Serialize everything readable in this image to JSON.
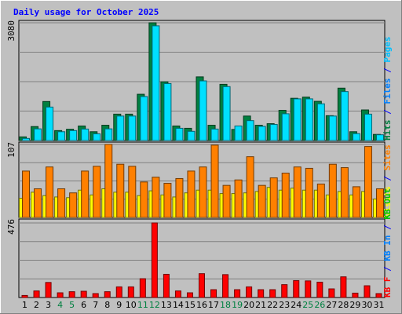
{
  "chart_data": {
    "type": "bar",
    "title": "Daily usage for October 2025",
    "categories": [
      "1",
      "2",
      "3",
      "4",
      "5",
      "6",
      "7",
      "8",
      "9",
      "10",
      "11",
      "12",
      "13",
      "14",
      "15",
      "16",
      "17",
      "18",
      "19",
      "20",
      "21",
      "22",
      "23",
      "24",
      "25",
      "26",
      "27",
      "28",
      "29",
      "30",
      "31"
    ],
    "weekend_days": [
      "4",
      "5",
      "11",
      "12",
      "18",
      "19",
      "25",
      "26"
    ],
    "grid": true,
    "panels": [
      {
        "id": "hits-files",
        "ymax_label": "3080",
        "ylim": [
          0,
          3080
        ],
        "right_labels": [
          {
            "text": "Hits",
            "color": "#008040"
          },
          {
            "text": " / ",
            "color": "#0000ff"
          },
          {
            "text": "Files",
            "color": "#0080ff"
          },
          {
            "text": " / ",
            "color": "#0000ff"
          },
          {
            "text": "Pages",
            "color": "#00c0ff"
          }
        ],
        "series": [
          {
            "name": "Hits",
            "color": "#008040",
            "values": [
              95,
              365,
              1020,
              260,
              295,
              380,
              230,
              400,
              690,
              690,
              1210,
              3080,
              1535,
              380,
              320,
              1665,
              400,
              1470,
              290,
              640,
              400,
              440,
              790,
              1105,
              1135,
              1025,
              650,
              1370,
              230,
              800,
              160
            ]
          },
          {
            "name": "Files",
            "color": "#00e0ff",
            "values": [
              55,
              305,
              875,
              230,
              260,
              300,
              175,
              305,
              640,
              640,
              1150,
              3000,
              1490,
              320,
              240,
              1560,
              300,
              1410,
              380,
              520,
              370,
              420,
              700,
              1090,
              1090,
              960,
              640,
              1280,
              180,
              690,
              150
            ]
          }
        ]
      },
      {
        "id": "sites-visits",
        "ymax_label": "107",
        "ylim": [
          0,
          107
        ],
        "right_labels": [
          {
            "text": "Visits",
            "color": "#ffff00"
          },
          {
            "text": " / ",
            "color": "#0000ff"
          },
          {
            "text": "Sites",
            "color": "#ff8000"
          }
        ],
        "series": [
          {
            "name": "Visits",
            "color": "#ffff00",
            "values": [
              28,
              37,
              32,
              30,
              29,
              40,
              33,
              42,
              37,
              37,
              32,
              39,
              33,
              30,
              36,
              40,
              40,
              35,
              35,
              36,
              38,
              44,
              40,
              43,
              40,
              40,
              33,
              38,
              33,
              38,
              27
            ]
          },
          {
            "name": "Sites",
            "color": "#ff8000",
            "values": [
              68,
              42,
              74,
              42,
              36,
              68,
              75,
              107,
              78,
              75,
              52,
              59,
              50,
              57,
              68,
              74,
              106,
              47,
              55,
              89,
              47,
              58,
              65,
              74,
              72,
              49,
              78,
              73,
              45,
              104,
              42
            ]
          }
        ]
      },
      {
        "id": "kbytes",
        "ymax_label": "476",
        "ylim": [
          0,
          476
        ],
        "right_labels": [
          {
            "text": "KB F",
            "color": "#ff0000"
          },
          {
            "text": " / ",
            "color": "#0000ff"
          },
          {
            "text": "KB In",
            "color": "#0080ff"
          },
          {
            "text": " / ",
            "color": "#0000ff"
          },
          {
            "text": "KB Out",
            "color": "#00c000"
          }
        ],
        "series": [
          {
            "name": "KB F",
            "color": "#ff0000",
            "values": [
              13,
              42,
              96,
              30,
              37,
              40,
              25,
              37,
              68,
              68,
              120,
              476,
              148,
              42,
              30,
              152,
              50,
              146,
              50,
              68,
              50,
              50,
              82,
              108,
              106,
              98,
              55,
              132,
              28,
              75,
              25
            ]
          }
        ]
      }
    ]
  }
}
